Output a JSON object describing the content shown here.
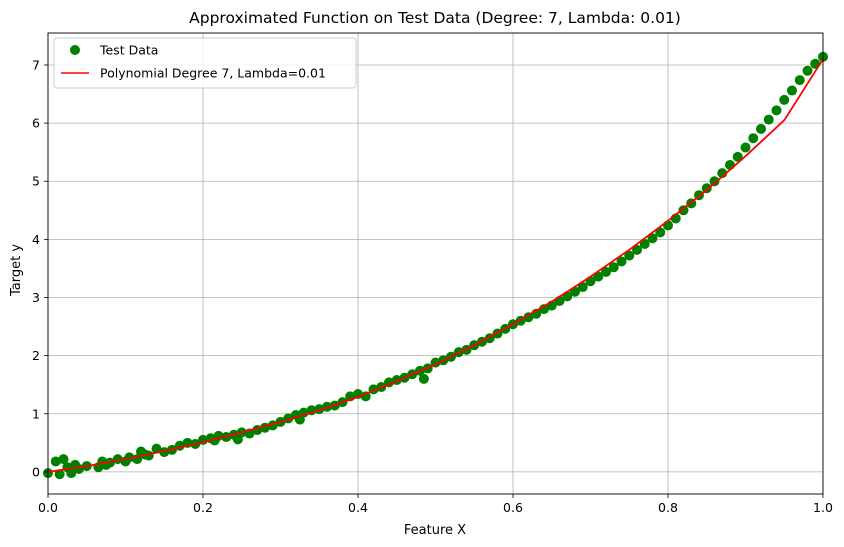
{
  "chart_data": {
    "type": "scatter",
    "title": "Approximated Function on Test Data (Degree: 7, Lambda: 0.01)",
    "xlabel": "Feature X",
    "ylabel": "Target y",
    "xlim": [
      0.0,
      1.0
    ],
    "ylim": [
      -0.38,
      7.55
    ],
    "xticks": [
      0.0,
      0.2,
      0.4,
      0.6,
      0.8,
      1.0
    ],
    "xtick_labels": [
      "0.0",
      "0.2",
      "0.4",
      "0.6",
      "0.8",
      "1.0"
    ],
    "yticks": [
      0,
      1,
      2,
      3,
      4,
      5,
      6,
      7
    ],
    "ytick_labels": [
      "0",
      "1",
      "2",
      "3",
      "4",
      "5",
      "6",
      "7"
    ],
    "grid": true,
    "legend_position": "top-left",
    "series": [
      {
        "name": "Test Data",
        "kind": "scatter",
        "color": "#008000",
        "x": [
          0.0,
          0.01,
          0.015,
          0.02,
          0.025,
          0.03,
          0.035,
          0.04,
          0.05,
          0.065,
          0.07,
          0.075,
          0.08,
          0.09,
          0.1,
          0.105,
          0.115,
          0.12,
          0.125,
          0.13,
          0.14,
          0.15,
          0.16,
          0.17,
          0.18,
          0.19,
          0.2,
          0.21,
          0.215,
          0.22,
          0.23,
          0.24,
          0.245,
          0.25,
          0.26,
          0.27,
          0.28,
          0.29,
          0.3,
          0.31,
          0.32,
          0.325,
          0.33,
          0.34,
          0.35,
          0.36,
          0.37,
          0.38,
          0.39,
          0.4,
          0.41,
          0.42,
          0.43,
          0.44,
          0.45,
          0.46,
          0.47,
          0.48,
          0.485,
          0.49,
          0.5,
          0.51,
          0.52,
          0.53,
          0.54,
          0.55,
          0.56,
          0.57,
          0.58,
          0.59,
          0.6,
          0.61,
          0.62,
          0.63,
          0.64,
          0.65,
          0.66,
          0.67,
          0.68,
          0.69,
          0.7,
          0.71,
          0.72,
          0.73,
          0.74,
          0.75,
          0.76,
          0.77,
          0.78,
          0.79,
          0.8,
          0.81,
          0.82,
          0.83,
          0.84,
          0.85,
          0.86,
          0.87,
          0.88,
          0.89,
          0.9,
          0.91,
          0.92,
          0.93,
          0.94,
          0.95,
          0.96,
          0.97,
          0.98,
          0.99,
          1.0
        ],
        "y": [
          -0.02,
          0.18,
          -0.04,
          0.22,
          0.08,
          -0.02,
          0.12,
          0.05,
          0.1,
          0.08,
          0.18,
          0.12,
          0.16,
          0.22,
          0.18,
          0.25,
          0.22,
          0.35,
          0.3,
          0.28,
          0.4,
          0.34,
          0.38,
          0.45,
          0.5,
          0.48,
          0.55,
          0.58,
          0.54,
          0.62,
          0.6,
          0.64,
          0.56,
          0.68,
          0.66,
          0.72,
          0.76,
          0.8,
          0.86,
          0.92,
          0.98,
          0.9,
          1.02,
          1.06,
          1.08,
          1.12,
          1.14,
          1.2,
          1.3,
          1.34,
          1.3,
          1.42,
          1.46,
          1.54,
          1.58,
          1.62,
          1.68,
          1.74,
          1.6,
          1.78,
          1.88,
          1.92,
          1.98,
          2.06,
          2.1,
          2.18,
          2.24,
          2.3,
          2.38,
          2.46,
          2.54,
          2.6,
          2.66,
          2.72,
          2.8,
          2.86,
          2.94,
          3.02,
          3.1,
          3.18,
          3.28,
          3.36,
          3.44,
          3.52,
          3.62,
          3.72,
          3.82,
          3.92,
          4.02,
          4.12,
          4.24,
          4.36,
          4.5,
          4.62,
          4.76,
          4.88,
          5.0,
          5.14,
          5.28,
          5.42,
          5.58,
          5.74,
          5.9,
          6.06,
          6.22,
          6.4,
          6.56,
          6.74,
          6.9,
          7.02,
          7.14
        ]
      },
      {
        "name": "Polynomial Degree 7, Lambda=0.01",
        "kind": "line",
        "color": "#ff0000",
        "x": [
          0.0,
          0.05,
          0.1,
          0.15,
          0.2,
          0.25,
          0.3,
          0.35,
          0.4,
          0.45,
          0.5,
          0.55,
          0.6,
          0.65,
          0.7,
          0.75,
          0.8,
          0.85,
          0.9,
          0.95,
          1.0
        ],
        "y": [
          0.0,
          0.1,
          0.22,
          0.36,
          0.51,
          0.68,
          0.86,
          1.06,
          1.29,
          1.56,
          1.85,
          2.18,
          2.54,
          2.93,
          3.36,
          3.82,
          4.32,
          4.85,
          5.43,
          6.05,
          7.1
        ]
      }
    ]
  }
}
